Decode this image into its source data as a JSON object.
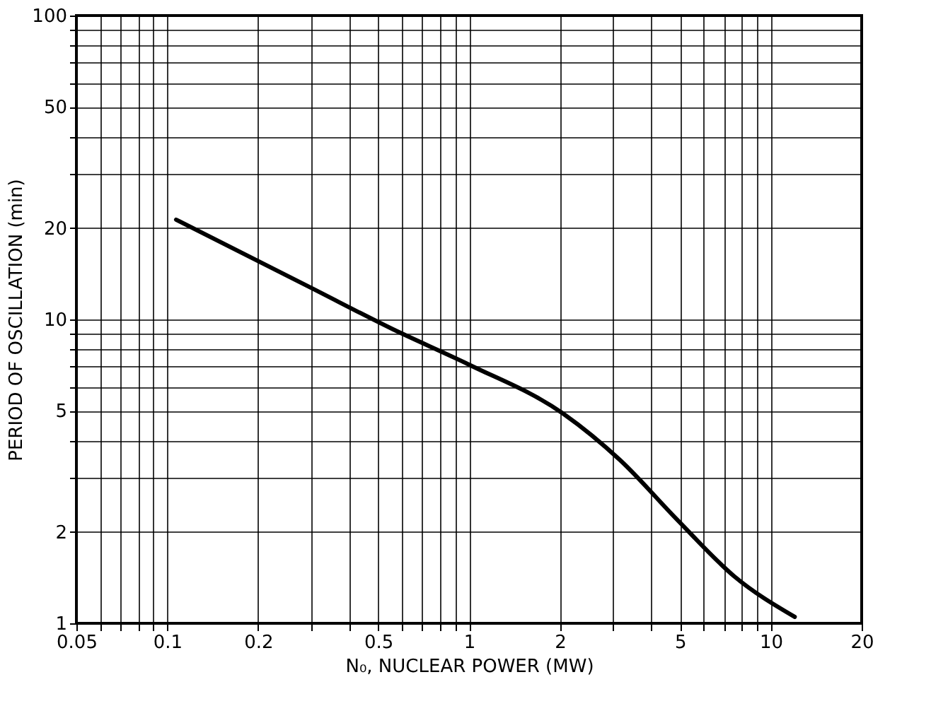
{
  "chart_data": {
    "type": "line",
    "xlabel": "N₀, NUCLEAR POWER (MW)",
    "ylabel": "PERIOD OF OSCILLATION (min)",
    "log": "xy",
    "grid": true,
    "marker": "none",
    "line_style": "solid",
    "x": [
      0.107,
      0.3,
      0.557,
      1,
      2.05,
      3.17,
      4.9,
      7.55,
      12
    ],
    "series": [
      {
        "color": "#000000",
        "values": [
          21.3,
          12.7,
          9.3,
          7.1,
          4.9,
          3.44,
          2.19,
          1.43,
          1.05
        ]
      }
    ],
    "xlim": [
      0.05,
      20
    ],
    "ylim": [
      1,
      100
    ],
    "xticks": [
      0.05,
      {
        "value": 0.06,
        "label": null
      },
      {
        "value": 0.07,
        "label": null
      },
      {
        "value": 0.08,
        "label": null
      },
      {
        "value": 0.09,
        "label": null
      },
      0.1,
      0.2,
      {
        "value": 0.3,
        "label": null
      },
      {
        "value": 0.4,
        "label": null
      },
      0.5,
      {
        "value": 0.6,
        "label": null
      },
      {
        "value": 0.7,
        "label": null
      },
      {
        "value": 0.8,
        "label": null
      },
      {
        "value": 0.9,
        "label": null
      },
      1,
      2,
      {
        "value": 3,
        "label": null
      },
      {
        "value": 4,
        "label": null
      },
      5,
      {
        "value": 6,
        "label": null
      },
      {
        "value": 7,
        "label": null
      },
      {
        "value": 8,
        "label": null
      },
      {
        "value": 9,
        "label": null
      },
      10,
      20
    ],
    "yticks": [
      1,
      2,
      {
        "value": 3,
        "label": null
      },
      {
        "value": 4,
        "label": null
      },
      5,
      {
        "value": 6,
        "label": null
      },
      {
        "value": 7,
        "label": null
      },
      {
        "value": 8,
        "label": null
      },
      {
        "value": 9,
        "label": null
      },
      10,
      20,
      {
        "value": 30,
        "label": null
      },
      {
        "value": 40,
        "label": null
      },
      50,
      {
        "value": 60,
        "label": null
      },
      {
        "value": 70,
        "label": null
      },
      {
        "value": 80,
        "label": null
      },
      {
        "value": 90,
        "label": null
      },
      100
    ]
  }
}
